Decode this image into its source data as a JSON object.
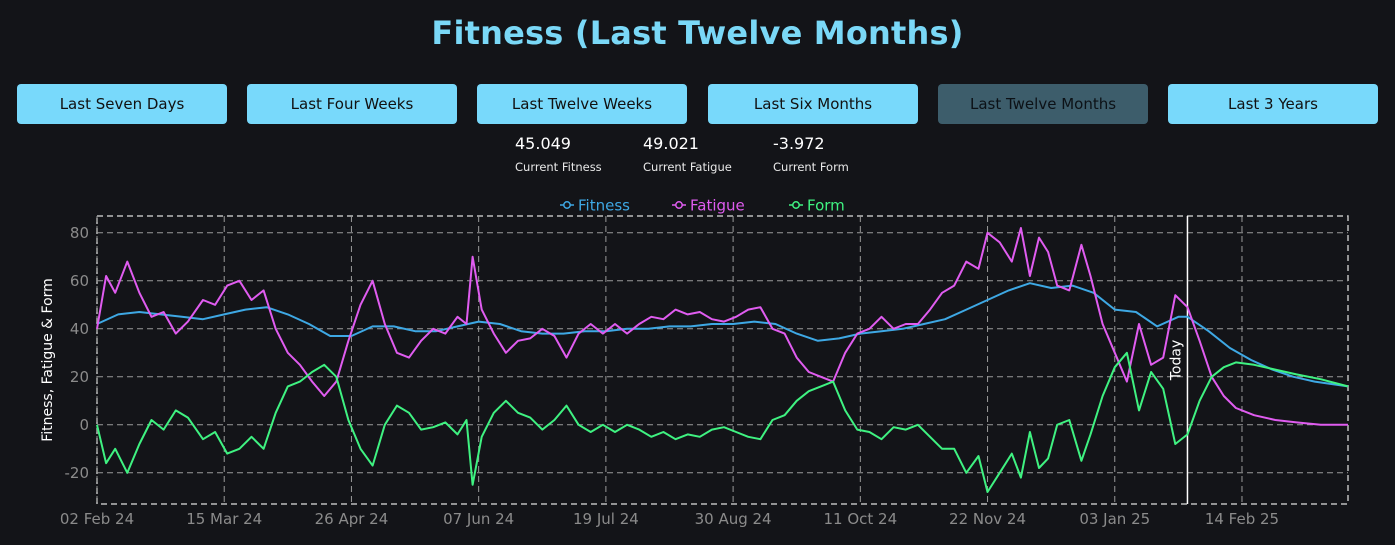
{
  "page": {
    "title": "Fitness (Last Twelve Months)"
  },
  "ranges": [
    {
      "label": "Last Seven Days",
      "active": false
    },
    {
      "label": "Last Four Weeks",
      "active": false
    },
    {
      "label": "Last Twelve Weeks",
      "active": false
    },
    {
      "label": "Last Six Months",
      "active": false
    },
    {
      "label": "Last Twelve Months",
      "active": true
    },
    {
      "label": "Last 3 Years",
      "active": false
    }
  ],
  "stats": [
    {
      "value": "45.049",
      "label": "Current Fitness"
    },
    {
      "value": "49.021",
      "label": "Current Fatigue"
    },
    {
      "value": "-3.972",
      "label": "Current Form"
    }
  ],
  "chart_data": {
    "type": "line",
    "ylabel": "Fitness, Fatigue & Form",
    "xlabel": "",
    "ylim": [
      -33,
      87
    ],
    "yticks": [
      -20,
      0,
      20,
      40,
      60,
      80
    ],
    "x_tick_labels": [
      "02 Feb 24",
      "15 Mar 24",
      "26 Apr 24",
      "07 Jun 24",
      "19 Jul 24",
      "30 Aug 24",
      "11 Oct 24",
      "22 Nov 24",
      "03 Jan 25",
      "14 Feb 25"
    ],
    "x_start": "02 Feb 24",
    "x_end": "21 Mar 25",
    "grid": true,
    "legend_position": "top-center",
    "today_label": "Today",
    "today_date": "27 Jan 25",
    "series": [
      {
        "name": "Fitness",
        "color": "#3ea8e4",
        "points": [
          [
            "02 Feb 24",
            42
          ],
          [
            "09 Feb 24",
            46
          ],
          [
            "16 Feb 24",
            47
          ],
          [
            "23 Feb 24",
            46
          ],
          [
            "01 Mar 24",
            45
          ],
          [
            "08 Mar 24",
            44
          ],
          [
            "15 Mar 24",
            46
          ],
          [
            "22 Mar 24",
            48
          ],
          [
            "29 Mar 24",
            49
          ],
          [
            "05 Apr 24",
            46
          ],
          [
            "12 Apr 24",
            42
          ],
          [
            "19 Apr 24",
            37
          ],
          [
            "26 Apr 24",
            37
          ],
          [
            "03 May 24",
            41
          ],
          [
            "10 May 24",
            41
          ],
          [
            "17 May 24",
            39
          ],
          [
            "24 May 24",
            39
          ],
          [
            "31 May 24",
            41
          ],
          [
            "07 Jun 24",
            43
          ],
          [
            "14 Jun 24",
            42
          ],
          [
            "21 Jun 24",
            39
          ],
          [
            "28 Jun 24",
            38
          ],
          [
            "05 Jul 24",
            38
          ],
          [
            "12 Jul 24",
            39
          ],
          [
            "19 Jul 24",
            39
          ],
          [
            "26 Jul 24",
            40
          ],
          [
            "02 Aug 24",
            40
          ],
          [
            "09 Aug 24",
            41
          ],
          [
            "16 Aug 24",
            41
          ],
          [
            "23 Aug 24",
            42
          ],
          [
            "30 Aug 24",
            42
          ],
          [
            "06 Sep 24",
            43
          ],
          [
            "13 Sep 24",
            42
          ],
          [
            "20 Sep 24",
            38
          ],
          [
            "27 Sep 24",
            35
          ],
          [
            "04 Oct 24",
            36
          ],
          [
            "11 Oct 24",
            38
          ],
          [
            "18 Oct 24",
            39
          ],
          [
            "25 Oct 24",
            40
          ],
          [
            "01 Nov 24",
            42
          ],
          [
            "08 Nov 24",
            44
          ],
          [
            "15 Nov 24",
            48
          ],
          [
            "22 Nov 24",
            52
          ],
          [
            "29 Nov 24",
            56
          ],
          [
            "06 Dec 24",
            59
          ],
          [
            "13 Dec 24",
            57
          ],
          [
            "20 Dec 24",
            58
          ],
          [
            "27 Dec 24",
            55
          ],
          [
            "03 Jan 25",
            48
          ],
          [
            "10 Jan 25",
            47
          ],
          [
            "17 Jan 25",
            41
          ],
          [
            "24 Jan 25",
            45
          ],
          [
            "27 Jan 25",
            45
          ],
          [
            "03 Feb 25",
            39
          ],
          [
            "10 Feb 25",
            32
          ],
          [
            "17 Feb 25",
            27
          ],
          [
            "24 Feb 25",
            23
          ],
          [
            "03 Mar 25",
            20
          ],
          [
            "10 Mar 25",
            18
          ],
          [
            "21 Mar 25",
            16
          ]
        ]
      },
      {
        "name": "Fatigue",
        "color": "#e05cf0",
        "points": [
          [
            "02 Feb 24",
            40
          ],
          [
            "05 Feb 24",
            62
          ],
          [
            "08 Feb 24",
            55
          ],
          [
            "12 Feb 24",
            68
          ],
          [
            "16 Feb 24",
            55
          ],
          [
            "20 Feb 24",
            45
          ],
          [
            "24 Feb 24",
            47
          ],
          [
            "28 Feb 24",
            38
          ],
          [
            "03 Mar 24",
            43
          ],
          [
            "08 Mar 24",
            52
          ],
          [
            "12 Mar 24",
            50
          ],
          [
            "16 Mar 24",
            58
          ],
          [
            "20 Mar 24",
            60
          ],
          [
            "24 Mar 24",
            52
          ],
          [
            "28 Mar 24",
            56
          ],
          [
            "01 Apr 24",
            40
          ],
          [
            "05 Apr 24",
            30
          ],
          [
            "09 Apr 24",
            25
          ],
          [
            "13 Apr 24",
            18
          ],
          [
            "17 Apr 24",
            12
          ],
          [
            "21 Apr 24",
            18
          ],
          [
            "25 Apr 24",
            35
          ],
          [
            "29 Apr 24",
            50
          ],
          [
            "03 May 24",
            60
          ],
          [
            "07 May 24",
            42
          ],
          [
            "11 May 24",
            30
          ],
          [
            "15 May 24",
            28
          ],
          [
            "19 May 24",
            35
          ],
          [
            "23 May 24",
            40
          ],
          [
            "27 May 24",
            38
          ],
          [
            "31 May 24",
            45
          ],
          [
            "03 Jun 24",
            42
          ],
          [
            "05 Jun 24",
            70
          ],
          [
            "08 Jun 24",
            48
          ],
          [
            "12 Jun 24",
            38
          ],
          [
            "16 Jun 24",
            30
          ],
          [
            "20 Jun 24",
            35
          ],
          [
            "24 Jun 24",
            36
          ],
          [
            "28 Jun 24",
            40
          ],
          [
            "02 Jul 24",
            37
          ],
          [
            "06 Jul 24",
            28
          ],
          [
            "10 Jul 24",
            38
          ],
          [
            "14 Jul 24",
            42
          ],
          [
            "18 Jul 24",
            38
          ],
          [
            "22 Jul 24",
            42
          ],
          [
            "26 Jul 24",
            38
          ],
          [
            "30 Jul 24",
            42
          ],
          [
            "03 Aug 24",
            45
          ],
          [
            "07 Aug 24",
            44
          ],
          [
            "11 Aug 24",
            48
          ],
          [
            "15 Aug 24",
            46
          ],
          [
            "19 Aug 24",
            47
          ],
          [
            "23 Aug 24",
            44
          ],
          [
            "27 Aug 24",
            43
          ],
          [
            "31 Aug 24",
            45
          ],
          [
            "04 Sep 24",
            48
          ],
          [
            "08 Sep 24",
            49
          ],
          [
            "12 Sep 24",
            40
          ],
          [
            "16 Sep 24",
            38
          ],
          [
            "20 Sep 24",
            28
          ],
          [
            "24 Sep 24",
            22
          ],
          [
            "28 Sep 24",
            20
          ],
          [
            "02 Oct 24",
            18
          ],
          [
            "06 Oct 24",
            30
          ],
          [
            "10 Oct 24",
            38
          ],
          [
            "14 Oct 24",
            40
          ],
          [
            "18 Oct 24",
            45
          ],
          [
            "22 Oct 24",
            40
          ],
          [
            "26 Oct 24",
            42
          ],
          [
            "30 Oct 24",
            42
          ],
          [
            "03 Nov 24",
            48
          ],
          [
            "07 Nov 24",
            55
          ],
          [
            "11 Nov 24",
            58
          ],
          [
            "15 Nov 24",
            68
          ],
          [
            "19 Nov 24",
            65
          ],
          [
            "22 Nov 24",
            80
          ],
          [
            "26 Nov 24",
            76
          ],
          [
            "30 Nov 24",
            68
          ],
          [
            "03 Dec 24",
            82
          ],
          [
            "06 Dec 24",
            62
          ],
          [
            "09 Dec 24",
            78
          ],
          [
            "12 Dec 24",
            72
          ],
          [
            "15 Dec 24",
            58
          ],
          [
            "19 Dec 24",
            56
          ],
          [
            "23 Dec 24",
            75
          ],
          [
            "26 Dec 24",
            62
          ],
          [
            "30 Dec 24",
            42
          ],
          [
            "03 Jan 25",
            30
          ],
          [
            "07 Jan 25",
            18
          ],
          [
            "11 Jan 25",
            42
          ],
          [
            "15 Jan 25",
            25
          ],
          [
            "19 Jan 25",
            28
          ],
          [
            "23 Jan 25",
            54
          ],
          [
            "27 Jan 25",
            49
          ],
          [
            "31 Jan 25",
            35
          ],
          [
            "04 Feb 25",
            20
          ],
          [
            "08 Feb 25",
            12
          ],
          [
            "12 Feb 25",
            7
          ],
          [
            "18 Feb 25",
            4
          ],
          [
            "25 Feb 25",
            2
          ],
          [
            "04 Mar 25",
            1
          ],
          [
            "12 Mar 25",
            0
          ],
          [
            "21 Mar 25",
            0
          ]
        ]
      },
      {
        "name": "Form",
        "color": "#3ff281",
        "points": [
          [
            "02 Feb 24",
            0
          ],
          [
            "05 Feb 24",
            -16
          ],
          [
            "08 Feb 24",
            -10
          ],
          [
            "12 Feb 24",
            -20
          ],
          [
            "16 Feb 24",
            -8
          ],
          [
            "20 Feb 24",
            2
          ],
          [
            "24 Feb 24",
            -2
          ],
          [
            "28 Feb 24",
            6
          ],
          [
            "03 Mar 24",
            3
          ],
          [
            "08 Mar 24",
            -6
          ],
          [
            "12 Mar 24",
            -3
          ],
          [
            "16 Mar 24",
            -12
          ],
          [
            "20 Mar 24",
            -10
          ],
          [
            "24 Mar 24",
            -5
          ],
          [
            "28 Mar 24",
            -10
          ],
          [
            "01 Apr 24",
            5
          ],
          [
            "05 Apr 24",
            16
          ],
          [
            "09 Apr 24",
            18
          ],
          [
            "13 Apr 24",
            22
          ],
          [
            "17 Apr 24",
            25
          ],
          [
            "21 Apr 24",
            20
          ],
          [
            "25 Apr 24",
            2
          ],
          [
            "29 Apr 24",
            -10
          ],
          [
            "03 May 24",
            -17
          ],
          [
            "07 May 24",
            0
          ],
          [
            "11 May 24",
            8
          ],
          [
            "15 May 24",
            5
          ],
          [
            "19 May 24",
            -2
          ],
          [
            "23 May 24",
            -1
          ],
          [
            "27 May 24",
            1
          ],
          [
            "31 May 24",
            -4
          ],
          [
            "03 Jun 24",
            2
          ],
          [
            "05 Jun 24",
            -25
          ],
          [
            "08 Jun 24",
            -5
          ],
          [
            "12 Jun 24",
            5
          ],
          [
            "16 Jun 24",
            10
          ],
          [
            "20 Jun 24",
            5
          ],
          [
            "24 Jun 24",
            3
          ],
          [
            "28 Jun 24",
            -2
          ],
          [
            "02 Jul 24",
            2
          ],
          [
            "06 Jul 24",
            8
          ],
          [
            "10 Jul 24",
            0
          ],
          [
            "14 Jul 24",
            -3
          ],
          [
            "18 Jul 24",
            0
          ],
          [
            "22 Jul 24",
            -3
          ],
          [
            "26 Jul 24",
            0
          ],
          [
            "30 Jul 24",
            -2
          ],
          [
            "03 Aug 24",
            -5
          ],
          [
            "07 Aug 24",
            -3
          ],
          [
            "11 Aug 24",
            -6
          ],
          [
            "15 Aug 24",
            -4
          ],
          [
            "19 Aug 24",
            -5
          ],
          [
            "23 Aug 24",
            -2
          ],
          [
            "27 Aug 24",
            -1
          ],
          [
            "31 Aug 24",
            -3
          ],
          [
            "04 Sep 24",
            -5
          ],
          [
            "08 Sep 24",
            -6
          ],
          [
            "12 Sep 24",
            2
          ],
          [
            "16 Sep 24",
            4
          ],
          [
            "20 Sep 24",
            10
          ],
          [
            "24 Sep 24",
            14
          ],
          [
            "28 Sep 24",
            16
          ],
          [
            "02 Oct 24",
            18
          ],
          [
            "06 Oct 24",
            6
          ],
          [
            "10 Oct 24",
            -2
          ],
          [
            "14 Oct 24",
            -3
          ],
          [
            "18 Oct 24",
            -6
          ],
          [
            "22 Oct 24",
            -1
          ],
          [
            "26 Oct 24",
            -2
          ],
          [
            "30 Oct 24",
            0
          ],
          [
            "03 Nov 24",
            -5
          ],
          [
            "07 Nov 24",
            -10
          ],
          [
            "11 Nov 24",
            -10
          ],
          [
            "15 Nov 24",
            -20
          ],
          [
            "19 Nov 24",
            -13
          ],
          [
            "22 Nov 24",
            -28
          ],
          [
            "26 Nov 24",
            -20
          ],
          [
            "30 Nov 24",
            -12
          ],
          [
            "03 Dec 24",
            -22
          ],
          [
            "06 Dec 24",
            -3
          ],
          [
            "09 Dec 24",
            -18
          ],
          [
            "12 Dec 24",
            -14
          ],
          [
            "15 Dec 24",
            0
          ],
          [
            "19 Dec 24",
            2
          ],
          [
            "23 Dec 24",
            -15
          ],
          [
            "26 Dec 24",
            -4
          ],
          [
            "30 Dec 24",
            12
          ],
          [
            "03 Jan 25",
            24
          ],
          [
            "07 Jan 25",
            30
          ],
          [
            "11 Jan 25",
            6
          ],
          [
            "15 Jan 25",
            22
          ],
          [
            "19 Jan 25",
            15
          ],
          [
            "23 Jan 25",
            -8
          ],
          [
            "27 Jan 25",
            -4
          ],
          [
            "31 Jan 25",
            10
          ],
          [
            "04 Feb 25",
            20
          ],
          [
            "08 Feb 25",
            24
          ],
          [
            "12 Feb 25",
            26
          ],
          [
            "18 Feb 25",
            25
          ],
          [
            "25 Feb 25",
            23
          ],
          [
            "04 Mar 25",
            21
          ],
          [
            "12 Mar 25",
            19
          ],
          [
            "21 Mar 25",
            16
          ]
        ]
      }
    ]
  }
}
